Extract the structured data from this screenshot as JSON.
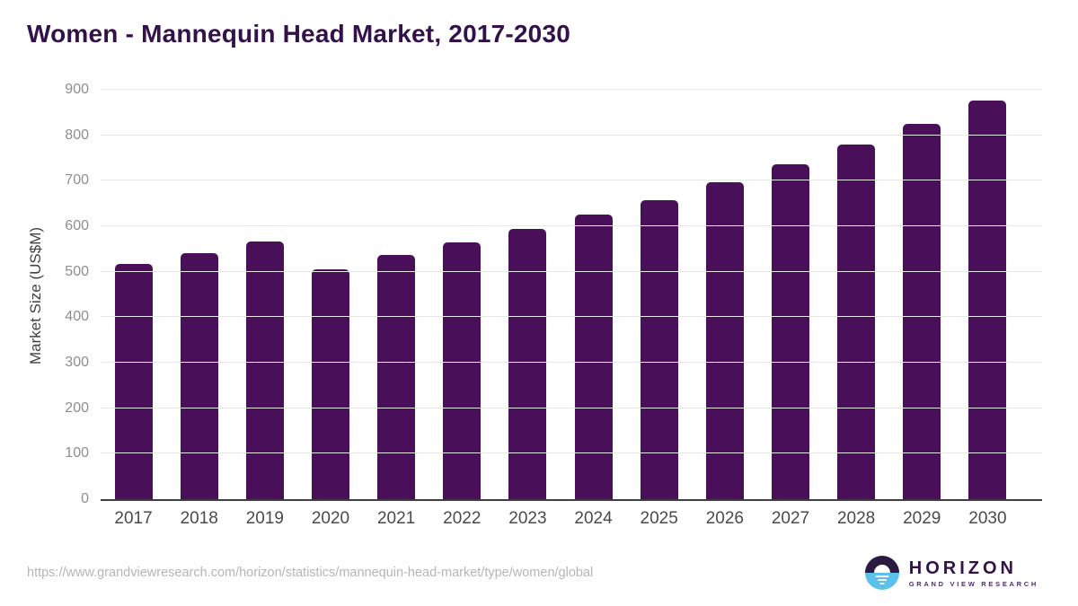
{
  "chart_data": {
    "type": "bar",
    "title": "Women - Mannequin Head Market, 2017-2030",
    "categories": [
      "2017",
      "2018",
      "2019",
      "2020",
      "2021",
      "2022",
      "2023",
      "2024",
      "2025",
      "2026",
      "2027",
      "2028",
      "2029",
      "2030"
    ],
    "values": [
      517,
      541,
      566,
      506,
      537,
      564,
      595,
      626,
      658,
      696,
      736,
      779,
      826,
      877
    ],
    "xlabel": "",
    "ylabel": "Market Size (US$M)",
    "ylim": [
      0,
      900
    ],
    "yticks": [
      0,
      100,
      200,
      300,
      400,
      500,
      600,
      700,
      800,
      900
    ],
    "grid": true,
    "legend_position": "none",
    "bar_color": "#491059"
  },
  "footer": {
    "source_url": "https://www.grandviewresearch.com/horizon/statistics/mannequin-head-market/type/women/global",
    "logo": {
      "name": "HORIZON",
      "subtitle": "GRAND VIEW RESEARCH"
    }
  },
  "colors": {
    "title": "#331249",
    "bar": "#491059",
    "gridline": "#e8e8e8",
    "axis": "#3e3e3e",
    "y_tick": "#8e8e8e",
    "x_label": "#4a4a4a",
    "url": "#b5b5b5",
    "logo_dark": "#2c1a43",
    "logo_blue": "#5ac1ea"
  }
}
